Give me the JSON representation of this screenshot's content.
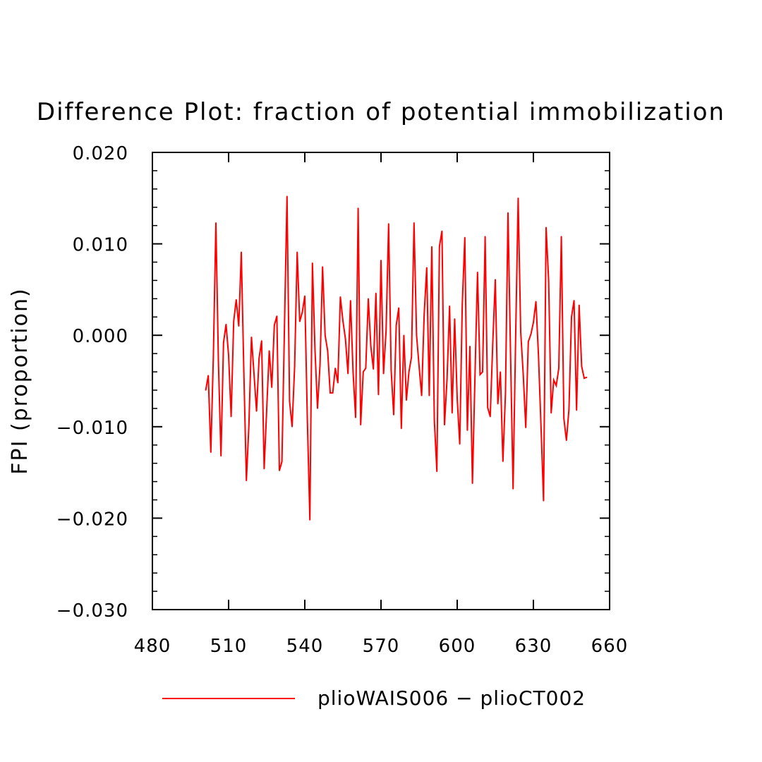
{
  "chart_data": {
    "type": "line",
    "title": "Difference Plot: fraction of potential immobilization",
    "xlabel": "",
    "ylabel": "FPI  (proportion)",
    "xlim": [
      480,
      660
    ],
    "ylim": [
      -0.03,
      0.02
    ],
    "x_ticks": [
      480,
      510,
      540,
      570,
      600,
      630,
      660
    ],
    "x_tick_labels": [
      "480",
      "510",
      "540",
      "570",
      "600",
      "630",
      "660"
    ],
    "y_ticks": [
      0.02,
      0.01,
      0.0,
      -0.01,
      -0.02,
      -0.03
    ],
    "y_tick_labels": [
      "0.020",
      "0.010",
      "0.000",
      "−0.010",
      "−0.020",
      "−0.030"
    ],
    "legend": {
      "placement": "bottom",
      "entries": [
        "plioWAIS006 − plioCT002"
      ]
    },
    "series": [
      {
        "name": "plioWAIS006 − plioCT002",
        "color": "#ff0000",
        "x_start": 501,
        "x_step": 1,
        "values": [
          -0.006,
          -0.0044,
          -0.0128,
          -0.0023,
          0.0123,
          -0.003,
          -0.0132,
          -0.0008,
          0.0012,
          -0.0022,
          -0.0089,
          0.0015,
          0.0039,
          0.001,
          0.0091,
          -0.004,
          -0.0159,
          -0.0098,
          -0.0002,
          -0.0042,
          -0.0083,
          -0.0025,
          -0.0006,
          -0.0146,
          -0.0081,
          -0.0017,
          -0.0057,
          0.0011,
          0.0021,
          -0.0148,
          -0.0138,
          0.001,
          0.0152,
          -0.0072,
          -0.01,
          -0.0034,
          0.0091,
          0.0015,
          0.0025,
          0.0043,
          -0.0092,
          -0.0202,
          0.0079,
          -0.0015,
          -0.008,
          -0.0032,
          0.0075,
          0.0,
          -0.0017,
          -0.0063,
          -0.0063,
          -0.0036,
          -0.0052,
          0.0042,
          0.0016,
          -0.0004,
          -0.0042,
          0.0038,
          -0.004,
          -0.009,
          0.0139,
          -0.0098,
          -0.004,
          -0.0036,
          0.004,
          -0.0012,
          -0.0037,
          0.0046,
          -0.0065,
          0.0082,
          -0.0042,
          0.0005,
          0.0122,
          -0.0038,
          -0.0087,
          0.0011,
          0.003,
          -0.0102,
          0.0,
          -0.0071,
          -0.004,
          -0.0024,
          0.0123,
          0.0,
          -0.0034,
          -0.0066,
          0.0023,
          0.0074,
          -0.0066,
          0.0097,
          -0.0093,
          -0.0149,
          0.0097,
          0.0114,
          -0.0098,
          -0.0048,
          0.0032,
          -0.0085,
          0.0018,
          -0.0069,
          -0.0119,
          0.0034,
          0.0107,
          -0.0104,
          -0.0012,
          -0.0162,
          -0.0045,
          0.0069,
          -0.0043,
          -0.004,
          0.0108,
          -0.0079,
          -0.0089,
          -0.0009,
          0.0061,
          -0.0075,
          -0.004,
          -0.0138,
          -0.0064,
          0.0134,
          -0.002,
          -0.0168,
          -0.0004,
          0.015,
          0.0004,
          -0.0043,
          -0.0101,
          -0.0007,
          0.0001,
          0.0014,
          0.0037,
          -0.0022,
          -0.01,
          -0.0181,
          0.0118,
          0.006,
          -0.0085,
          -0.0049,
          -0.0055,
          -0.0036,
          0.0108,
          -0.0091,
          -0.0115,
          -0.0081,
          0.002,
          0.0038,
          -0.0082,
          0.0033,
          -0.0034,
          -0.0047,
          -0.0046
        ]
      }
    ]
  }
}
